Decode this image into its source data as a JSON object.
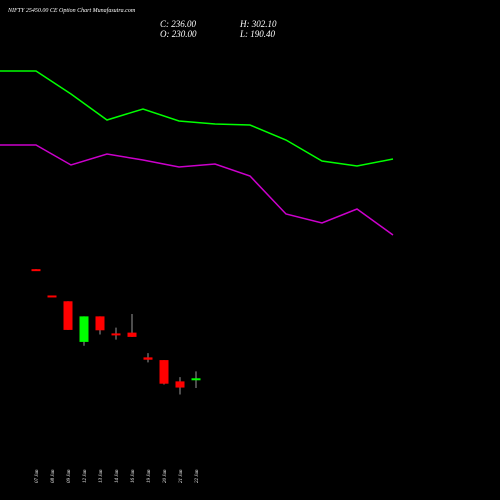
{
  "header": {
    "title": "NIFTY 25450.00 CE Option Chart Munafasutra.com",
    "close_label": "C: 236.00",
    "open_label": "O: 230.00",
    "high_label": "H: 302.10",
    "low_label": "L: 190.40"
  },
  "colors": {
    "background": "#000000",
    "up": "#00ff00",
    "down": "#ff0000",
    "ma_upper": "#00ff00",
    "ma_lower": "#cc00cc",
    "wick": "#ffffff",
    "text": "#ffffff"
  },
  "chart_data": {
    "type": "candlestick",
    "categories": [
      "07 Jan",
      "08 Jan",
      "09 Jan",
      "12 Jan",
      "13 Jan",
      "14 Jan",
      "16 Jan",
      "19 Jan",
      "20 Jan",
      "21 Jan",
      "22 Jan"
    ],
    "ylim": [
      140,
      600
    ],
    "grid": false,
    "candles": [
      {
        "date": "07 Jan",
        "open": 566,
        "high": 566,
        "low": 564,
        "close": 564
      },
      {
        "date": "08 Jan",
        "open": 498,
        "high": 498,
        "low": 497,
        "close": 497
      },
      {
        "date": "09 Jan",
        "open": 483,
        "high": 483,
        "low": 409,
        "close": 409
      },
      {
        "date": "12 Jan",
        "open": 378,
        "high": 444,
        "low": 368,
        "close": 444
      },
      {
        "date": "13 Jan",
        "open": 444,
        "high": 444,
        "low": 397,
        "close": 408
      },
      {
        "date": "14 Jan",
        "open": 400,
        "high": 415,
        "low": 384,
        "close": 395
      },
      {
        "date": "16 Jan",
        "open": 402,
        "high": 450,
        "low": 391,
        "close": 391
      },
      {
        "date": "19 Jan",
        "open": 338,
        "high": 349,
        "low": 325,
        "close": 332
      },
      {
        "date": "20 Jan",
        "open": 331,
        "high": 331,
        "low": 268,
        "close": 270
      },
      {
        "date": "21 Jan",
        "open": 276,
        "high": 287,
        "low": 242,
        "close": 260
      },
      {
        "date": "22 Jan",
        "open": 280,
        "high": 302,
        "low": 259,
        "close": 284
      }
    ],
    "moving_averages": [
      {
        "color": "#00ff00",
        "points": [
          [
            0,
            71
          ],
          [
            36,
            71
          ],
          [
            71,
            94
          ],
          [
            107,
            120
          ],
          [
            143,
            109
          ],
          [
            179,
            121
          ],
          [
            215,
            124
          ],
          [
            250,
            125
          ],
          [
            286,
            140
          ],
          [
            322,
            161
          ],
          [
            357,
            166
          ],
          [
            393,
            159
          ]
        ]
      },
      {
        "color": "#cc00cc",
        "points": [
          [
            0,
            145
          ],
          [
            36,
            145
          ],
          [
            71,
            165
          ],
          [
            107,
            154
          ],
          [
            143,
            160
          ],
          [
            179,
            167
          ],
          [
            215,
            164
          ],
          [
            250,
            176
          ],
          [
            286,
            214
          ],
          [
            322,
            223
          ],
          [
            357,
            209
          ],
          [
            393,
            235
          ]
        ]
      }
    ]
  }
}
